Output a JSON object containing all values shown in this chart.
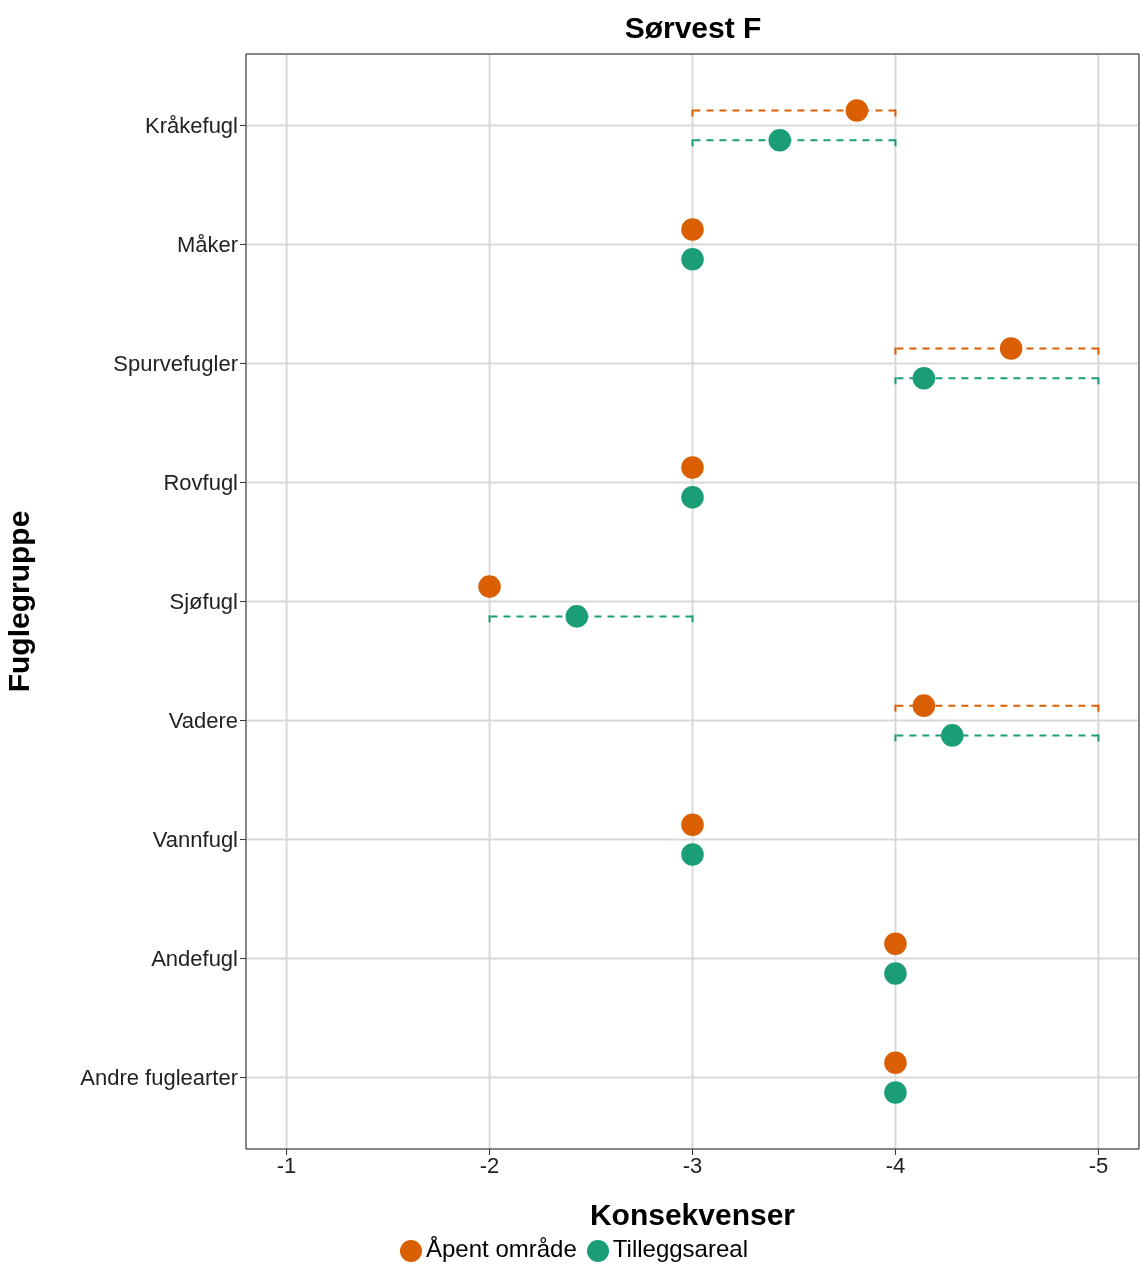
{
  "chart_data": {
    "type": "scatter",
    "title": "Sørvest F",
    "xlabel": "Konsekvenser",
    "ylabel": "Fuglegruppe",
    "orientation": "horizontal",
    "categories": [
      "Kråkefugl",
      "Måker",
      "Spurvefugler",
      "Rovfugl",
      "Sjøfugl",
      "Vadere",
      "Vannfugl",
      "Andefugl",
      "Andre fuglearter"
    ],
    "series": [
      {
        "name": "Åpent område",
        "color": "#d95f02",
        "values": [
          -3.81,
          -3,
          -4.57,
          -3,
          -2,
          -4.14,
          -3,
          -4,
          -4
        ],
        "errors": [
          [
            -4,
            -3
          ],
          null,
          [
            -5,
            -4
          ],
          null,
          null,
          [
            -5,
            -4
          ],
          null,
          null,
          null
        ]
      },
      {
        "name": "Tilleggsareal",
        "color": "#1b9e77",
        "values": [
          -3.43,
          -3,
          -4.14,
          -3,
          -2.43,
          -4.28,
          -3,
          -4,
          -4
        ],
        "errors": [
          [
            -4,
            -3
          ],
          null,
          [
            -5,
            -4
          ],
          null,
          [
            -3,
            -2
          ],
          [
            -5,
            -4
          ],
          null,
          null,
          null
        ]
      }
    ],
    "xlim": [
      -0.8,
      -5.2
    ],
    "xticks": [
      -1,
      -2,
      -3,
      -4,
      -5
    ],
    "grid": true,
    "legend": "bottom",
    "marker": "circle"
  }
}
